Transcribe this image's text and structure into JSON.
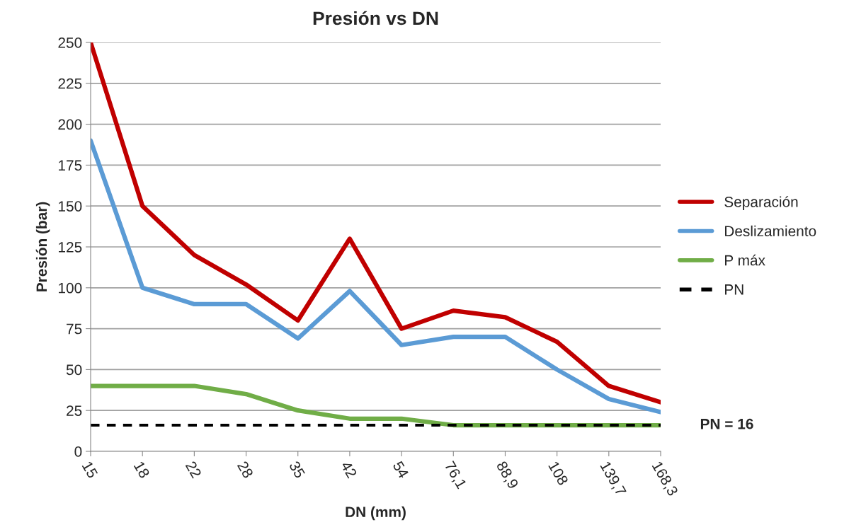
{
  "chart_data": {
    "type": "line",
    "title": "Presión vs DN",
    "xlabel": "DN (mm)",
    "ylabel": "Presión (bar)",
    "categories": [
      "15",
      "18",
      "22",
      "28",
      "35",
      "42",
      "54",
      "76,1",
      "88,9",
      "108",
      "139,7",
      "168,3"
    ],
    "series": [
      {
        "name": "Separación",
        "color": "#c00000",
        "values": [
          250,
          150,
          120,
          102,
          80,
          130,
          75,
          86,
          82,
          67,
          40,
          30
        ]
      },
      {
        "name": "Deslizamiento",
        "color": "#5b9bd5",
        "values": [
          190,
          100,
          90,
          90,
          69,
          98,
          65,
          70,
          70,
          50,
          32,
          24
        ]
      },
      {
        "name": "P máx",
        "color": "#70ad47",
        "values": [
          40,
          40,
          40,
          35,
          25,
          20,
          20,
          16,
          16,
          16,
          16,
          16
        ]
      },
      {
        "name": "PN",
        "color": "#000000",
        "line_style": "dashed",
        "values": [
          16,
          16,
          16,
          16,
          16,
          16,
          16,
          16,
          16,
          16,
          16,
          16
        ]
      }
    ],
    "annotations": [
      {
        "text": "PN = 16",
        "x": "168,3",
        "y": 16
      }
    ],
    "ylim": [
      0,
      250
    ],
    "yticks": [
      0,
      25,
      50,
      75,
      100,
      125,
      150,
      175,
      200,
      225,
      250
    ],
    "grid": "y",
    "legend": "right",
    "line_style": "solid",
    "marker": "none"
  }
}
